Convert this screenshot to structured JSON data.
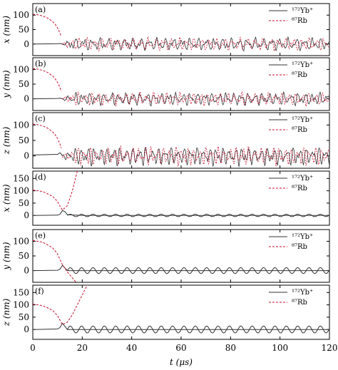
{
  "chart_data": {
    "type": "line",
    "xlabel": "t (μs)",
    "xlim": [
      0,
      120
    ],
    "x_ticks": [
      "0",
      "20",
      "40",
      "60",
      "80",
      "100",
      "120"
    ],
    "x_tick_values": [
      0,
      20,
      40,
      60,
      80,
      100,
      120
    ],
    "legend_position": "top-right",
    "legend": [
      {
        "label": "¹⁷²Yb⁺",
        "color": "#333333",
        "style": "solid"
      },
      {
        "label": "⁸⁷Rb",
        "color": "#c8102e",
        "style": "dashed"
      }
    ],
    "panels": [
      {
        "tag": "(a)",
        "ylabel": "x (nm)",
        "ylim": [
          -40,
          140
        ],
        "y_ticks": [
          "0",
          "50",
          "100"
        ],
        "y_tick_values": [
          0,
          50,
          100
        ],
        "behaviour": "chaotic",
        "series": [
          {
            "name": "¹⁷²Yb⁺",
            "x": [
              0,
              10,
              11,
              11.5,
              12
            ],
            "y": [
              0,
              1,
              2,
              1,
              0
            ]
          },
          {
            "name": "⁸⁷Rb",
            "x": [
              0,
              2,
              4,
              6,
              8,
              9,
              10,
              11,
              11.5
            ],
            "y": [
              103,
              101,
              97,
              90,
              78,
              69,
              56,
              38,
              25
            ]
          }
        ]
      },
      {
        "tag": "(b)",
        "ylabel": "y (nm)",
        "ylim": [
          -40,
          140
        ],
        "y_ticks": [
          "0",
          "50",
          "100"
        ],
        "y_tick_values": [
          0,
          50,
          100
        ],
        "behaviour": "chaotic",
        "series": [
          {
            "name": "¹⁷²Yb⁺",
            "x": [
              0,
              10,
              11,
              11.5,
              12
            ],
            "y": [
              0,
              1,
              2,
              1,
              0
            ]
          },
          {
            "name": "⁸⁷Rb",
            "x": [
              0,
              2,
              4,
              6,
              8,
              9,
              10,
              11,
              11.5
            ],
            "y": [
              103,
              101,
              97,
              90,
              78,
              69,
              56,
              38,
              25
            ]
          }
        ]
      },
      {
        "tag": "(c)",
        "ylabel": "z (nm)",
        "ylim": [
          -40,
          140
        ],
        "y_ticks": [
          "0",
          "50",
          "100"
        ],
        "y_tick_values": [
          0,
          50,
          100
        ],
        "behaviour": "chaotic",
        "series": [
          {
            "name": "¹⁷²Yb⁺",
            "x": [
              0,
              10,
              11,
              11.5,
              12
            ],
            "y": [
              3,
              5,
              10,
              6,
              0
            ]
          },
          {
            "name": "⁸⁷Rb",
            "x": [
              0,
              2,
              4,
              6,
              8,
              9,
              10,
              11,
              11.5
            ],
            "y": [
              103,
              101,
              97,
              90,
              78,
              69,
              56,
              38,
              25
            ]
          }
        ]
      },
      {
        "tag": "(d)",
        "ylabel": "x (nm)",
        "ylim": [
          -40,
          180
        ],
        "y_ticks": [
          "0",
          "50",
          "100",
          "150"
        ],
        "y_tick_values": [
          0,
          50,
          100,
          150
        ],
        "behaviour": "escape",
        "series": [
          {
            "name": "¹⁷²Yb⁺",
            "x": [
              0,
              10,
              11,
              12,
              13,
              14,
              20,
              40,
              60,
              80,
              100,
              120
            ],
            "y": [
              0,
              1,
              5,
              20,
              15,
              3,
              0,
              0,
              0,
              0,
              0,
              0
            ]
          },
          {
            "name": "⁸⁷Rb",
            "x": [
              0,
              4,
              8,
              10,
              11,
              12,
              14,
              16,
              18
            ],
            "y": [
              103,
              97,
              78,
              56,
              38,
              22,
              40,
              100,
              180
            ]
          }
        ]
      },
      {
        "tag": "(e)",
        "ylabel": "y (nm)",
        "ylim": [
          -40,
          140
        ],
        "y_ticks": [
          "0",
          "50",
          "100"
        ],
        "y_tick_values": [
          0,
          50,
          100
        ],
        "behaviour": "escape",
        "series": [
          {
            "name": "¹⁷²Yb⁺",
            "x": [
              0,
              10,
              11,
              12,
              14,
              20,
              40,
              60,
              80,
              100,
              120
            ],
            "y": [
              0,
              1,
              5,
              18,
              0,
              0,
              0,
              0,
              0,
              0,
              0
            ]
          },
          {
            "name": "⁸⁷Rb",
            "x": [
              0,
              4,
              8,
              10,
              11,
              12,
              14,
              16,
              18
            ],
            "y": [
              103,
              97,
              78,
              56,
              38,
              20,
              -5,
              -25,
              -45
            ]
          }
        ]
      },
      {
        "tag": "(f)",
        "ylabel": "z (nm)",
        "ylim": [
          -40,
          180
        ],
        "y_ticks": [
          "0",
          "50",
          "100",
          "150"
        ],
        "y_tick_values": [
          0,
          50,
          100,
          150
        ],
        "behaviour": "escape",
        "series": [
          {
            "name": "¹⁷²Yb⁺",
            "x": [
              0,
              10,
              11,
              12,
              14,
              20,
              40,
              60,
              80,
              100,
              120
            ],
            "y": [
              0,
              2,
              8,
              25,
              0,
              0,
              0,
              0,
              0,
              0,
              0
            ]
          },
          {
            "name": "⁸⁷Rb",
            "x": [
              0,
              4,
              8,
              10,
              11,
              12,
              14,
              16,
              18,
              20,
              22
            ],
            "y": [
              103,
              97,
              78,
              56,
              38,
              20,
              30,
              60,
              100,
              140,
              180
            ]
          }
        ]
      }
    ]
  }
}
